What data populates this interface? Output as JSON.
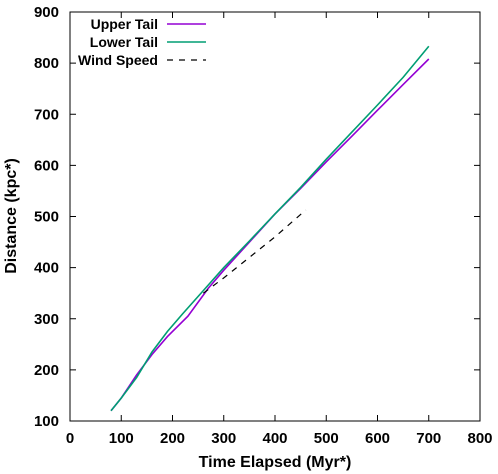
{
  "chart_data": {
    "type": "line",
    "xlabel": "Time Elapsed (Myr*)",
    "ylabel": "Distance (kpc*)",
    "xlim": [
      0,
      800
    ],
    "ylim": [
      100,
      900
    ],
    "xticks": [
      0,
      100,
      200,
      300,
      400,
      500,
      600,
      700,
      800
    ],
    "yticks": [
      100,
      200,
      300,
      400,
      500,
      600,
      700,
      800,
      900
    ],
    "grid": false,
    "legend_position": "top-left",
    "series": [
      {
        "name": "Upper Tail",
        "color": "#9400d3",
        "style": "solid",
        "x": [
          80,
          100,
          130,
          160,
          190,
          230,
          270,
          300,
          350,
          400,
          450,
          500,
          550,
          600,
          650,
          700
        ],
        "y": [
          120,
          145,
          190,
          230,
          265,
          305,
          360,
          395,
          450,
          505,
          555,
          607,
          657,
          708,
          758,
          808
        ]
      },
      {
        "name": "Lower Tail",
        "color": "#009e73",
        "style": "solid",
        "x": [
          80,
          100,
          130,
          160,
          190,
          220,
          260,
          300,
          350,
          400,
          450,
          500,
          550,
          600,
          650,
          700
        ],
        "y": [
          120,
          145,
          185,
          235,
          275,
          310,
          355,
          400,
          452,
          505,
          557,
          612,
          665,
          718,
          772,
          833
        ]
      },
      {
        "name": "Wind Speed",
        "color": "#000000",
        "style": "dashed",
        "x": [
          260,
          300,
          350,
          400,
          460
        ],
        "y": [
          350,
          380,
          420,
          460,
          513
        ]
      }
    ]
  }
}
